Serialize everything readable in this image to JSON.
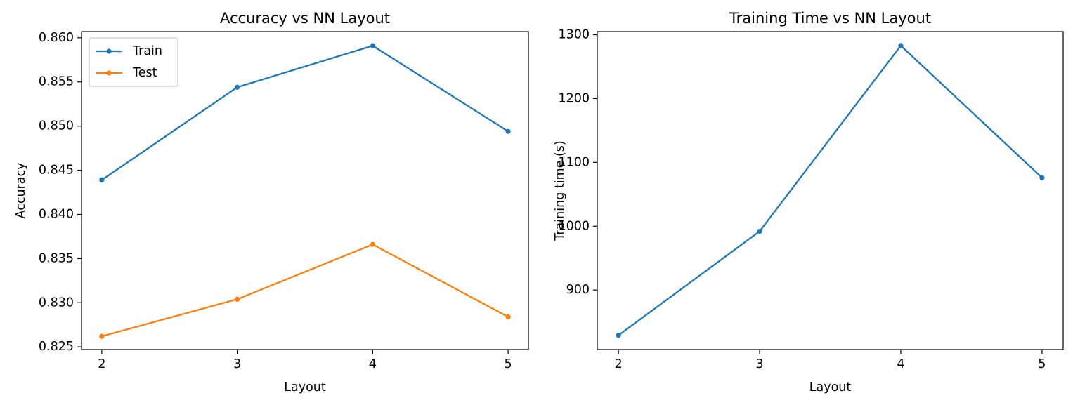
{
  "chart_data": [
    {
      "type": "line",
      "title": "Accuracy vs NN Layout",
      "xlabel": "Layout",
      "ylabel": "Accuracy",
      "x": [
        2,
        3,
        4,
        5
      ],
      "xticks": [
        "2",
        "3",
        "4",
        "5"
      ],
      "xlim": [
        1.85,
        5.15
      ],
      "ylim": [
        0.8247,
        0.8607
      ],
      "yticks": [
        "0.825",
        "0.830",
        "0.835",
        "0.840",
        "0.845",
        "0.850",
        "0.855",
        "0.860"
      ],
      "yticks_values": [
        0.825,
        0.83,
        0.835,
        0.84,
        0.845,
        0.85,
        0.855,
        0.86
      ],
      "grid": false,
      "legend": "top-left",
      "series": [
        {
          "name": "Train",
          "color": "#1f77b4",
          "values": [
            0.8439,
            0.8544,
            0.8591,
            0.8494
          ]
        },
        {
          "name": "Test",
          "color": "#ff7f0e",
          "values": [
            0.8262,
            0.8304,
            0.8366,
            0.8284
          ]
        }
      ]
    },
    {
      "type": "line",
      "title": "Training Time vs NN Layout",
      "xlabel": "Layout",
      "ylabel": "Training time (s)",
      "x": [
        2,
        3,
        4,
        5
      ],
      "xticks": [
        "2",
        "3",
        "4",
        "5"
      ],
      "xlim": [
        1.85,
        5.15
      ],
      "ylim": [
        806.7,
        1305.0
      ],
      "yticks": [
        "900",
        "1000",
        "1100",
        "1200",
        "1300"
      ],
      "yticks_values": [
        900,
        1000,
        1100,
        1200,
        1300
      ],
      "grid": false,
      "legend": "none",
      "series": [
        {
          "color": "#1f77b4",
          "values": [
            829,
            992,
            1283,
            1076
          ]
        }
      ]
    }
  ]
}
